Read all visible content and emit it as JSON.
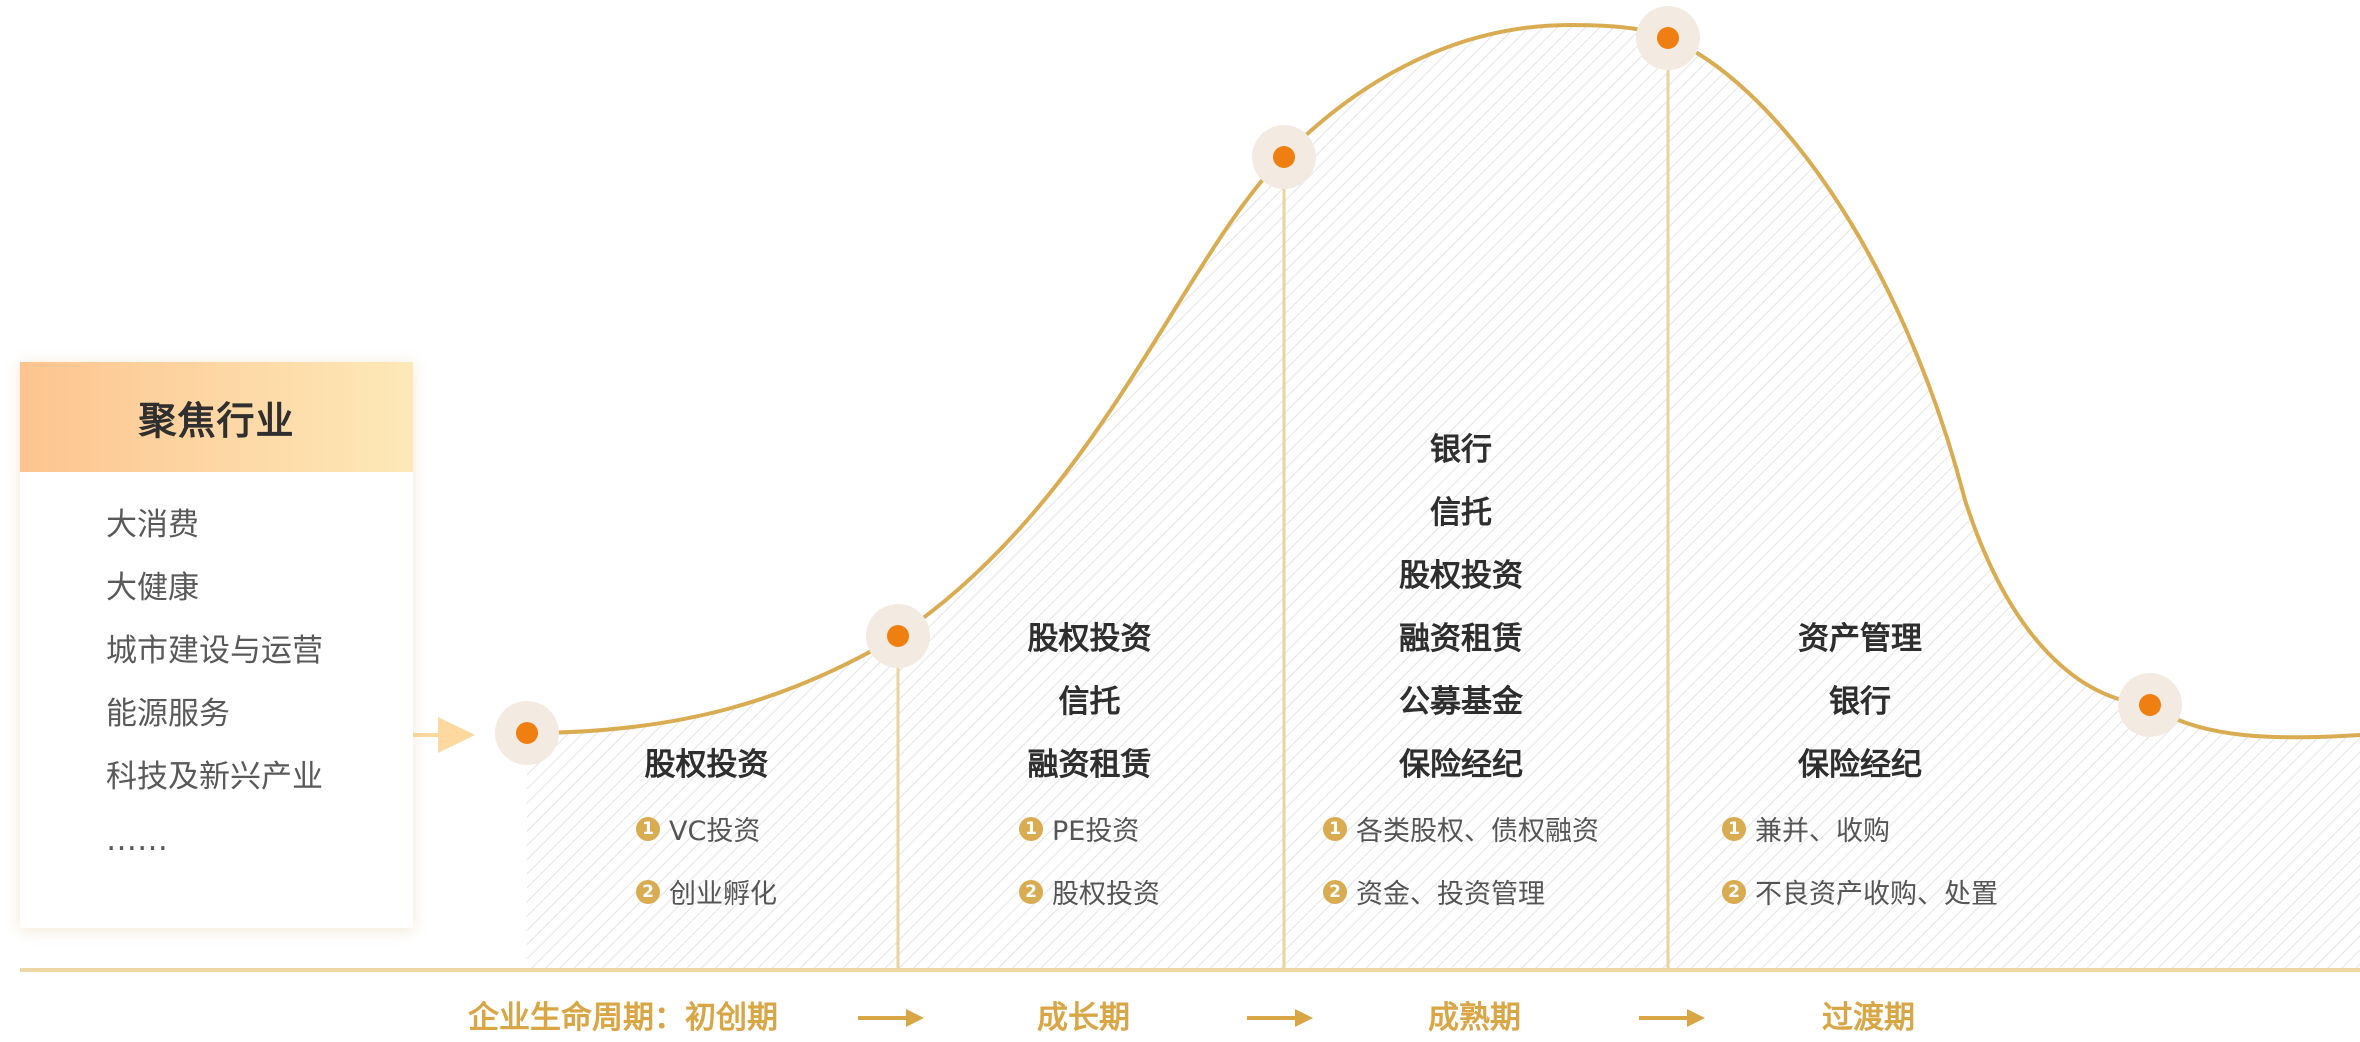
{
  "colors": {
    "curve": "#d9ac52",
    "dot_fill": "#f07f12",
    "dot_halo": "#f3ebe2",
    "baseline": "#ecd6a6",
    "divider": "#ead39e",
    "hatch": "#e4e4e4",
    "timeline_text": "#d9a645"
  },
  "focus_industries": {
    "title": "聚焦行业",
    "items": [
      "大消费",
      "大健康",
      "城市建设与运营",
      "能源服务",
      "科技及新兴产业",
      "……"
    ]
  },
  "stages": [
    {
      "institutions": [
        "股权投资"
      ],
      "features": [
        {
          "num": "1",
          "text": "VC投资"
        },
        {
          "num": "2",
          "text": "创业孵化"
        }
      ]
    },
    {
      "institutions": [
        "股权投资",
        "信托",
        "融资租赁"
      ],
      "features": [
        {
          "num": "1",
          "text": "PE投资"
        },
        {
          "num": "2",
          "text": "股权投资"
        }
      ]
    },
    {
      "institutions": [
        "银行",
        "信托",
        "股权投资",
        "融资租赁",
        "公募基金",
        "保险经纪"
      ],
      "features": [
        {
          "num": "1",
          "text": "各类股权、债权融资"
        },
        {
          "num": "2",
          "text": "资金、投资管理"
        }
      ]
    },
    {
      "institutions": [
        "资产管理",
        "银行",
        "保险经纪"
      ],
      "features": [
        {
          "num": "1",
          "text": "兼并、收购"
        },
        {
          "num": "2",
          "text": "不良资产收购、处置"
        }
      ]
    }
  ],
  "timeline": {
    "prefix": "企业生命周期：",
    "labels": [
      "初创期",
      "成长期",
      "成熟期",
      "过渡期"
    ]
  }
}
